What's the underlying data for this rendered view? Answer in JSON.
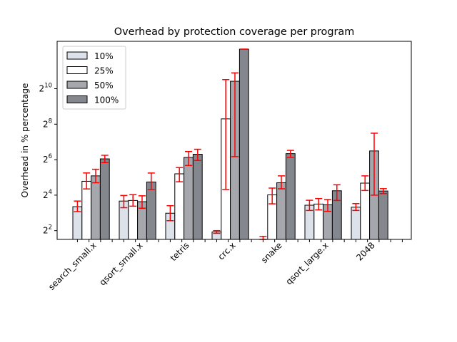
{
  "chart_data": {
    "type": "bar",
    "title": "Overhead by protection coverage per program",
    "ylabel": "Overhead in % percentage",
    "xlabel": "",
    "yscale": "log2",
    "y_tick_labels": [
      {
        "value": 4,
        "label": "2^2",
        "base": "2",
        "exp": "2"
      },
      {
        "value": 16,
        "label": "2^4",
        "base": "2",
        "exp": "4"
      },
      {
        "value": 64,
        "label": "2^6",
        "base": "2",
        "exp": "6"
      },
      {
        "value": 256,
        "label": "2^8",
        "base": "2",
        "exp": "8"
      },
      {
        "value": 1024,
        "label": "2^10",
        "base": "2",
        "exp": "10"
      }
    ],
    "categories": [
      "search_small.x",
      "qsort_small.x",
      "tetris",
      "crc.x",
      "snake",
      "qsort_large.x",
      "2048"
    ],
    "legend_position": "top-left",
    "error_bar_color": "#ff0000",
    "series": [
      {
        "name": "10%",
        "color": "#dde1ea",
        "values": [
          10.2,
          12.7,
          7.9,
          3.8,
          2.5,
          10.8,
          10.0
        ],
        "errors": [
          [
            8.4,
            12.7
          ],
          [
            9.8,
            15.8
          ],
          [
            5.9,
            10.6
          ],
          [
            3.6,
            4.0
          ],
          [
            2.0,
            3.2
          ],
          [
            8.8,
            13.1
          ],
          [
            8.8,
            11.5
          ]
        ]
      },
      {
        "name": "25%",
        "color": "#ffffff",
        "values": [
          27.5,
          13.0,
          36.8,
          315.0,
          16.2,
          11.3,
          25.6
        ],
        "errors": [
          [
            20.4,
            38.1
          ],
          [
            10.4,
            16.3
          ],
          [
            27.0,
            47.0
          ],
          [
            20.0,
            1460.0
          ],
          [
            11.4,
            21.1
          ],
          [
            9.0,
            14.0
          ],
          [
            19.2,
            34.0
          ]
        ]
      },
      {
        "name": "50%",
        "color": "#a5a7ad",
        "values": [
          34.0,
          12.4,
          70.0,
          1370.0,
          26.0,
          11.0,
          90.0
        ],
        "errors": [
          [
            26.0,
            44.0
          ],
          [
            9.6,
            15.6
          ],
          [
            51.0,
            88.0
          ],
          [
            72.0,
            1900.0
          ],
          [
            20.5,
            34.0
          ],
          [
            8.5,
            13.5
          ],
          [
            16.0,
            180.0
          ]
        ]
      },
      {
        "name": "100%",
        "color": "#85878e",
        "values": [
          66.0,
          26.8,
          79.0,
          4800.0,
          81.0,
          19.0,
          18.8
        ],
        "errors": [
          [
            57.0,
            76.0
          ],
          [
            20.0,
            38.0
          ],
          [
            62.0,
            96.0
          ],
          [
            4800.0,
            4800.0
          ],
          [
            70.0,
            92.0
          ],
          [
            13.0,
            24.0
          ],
          [
            17.0,
            20.6
          ]
        ]
      }
    ]
  }
}
